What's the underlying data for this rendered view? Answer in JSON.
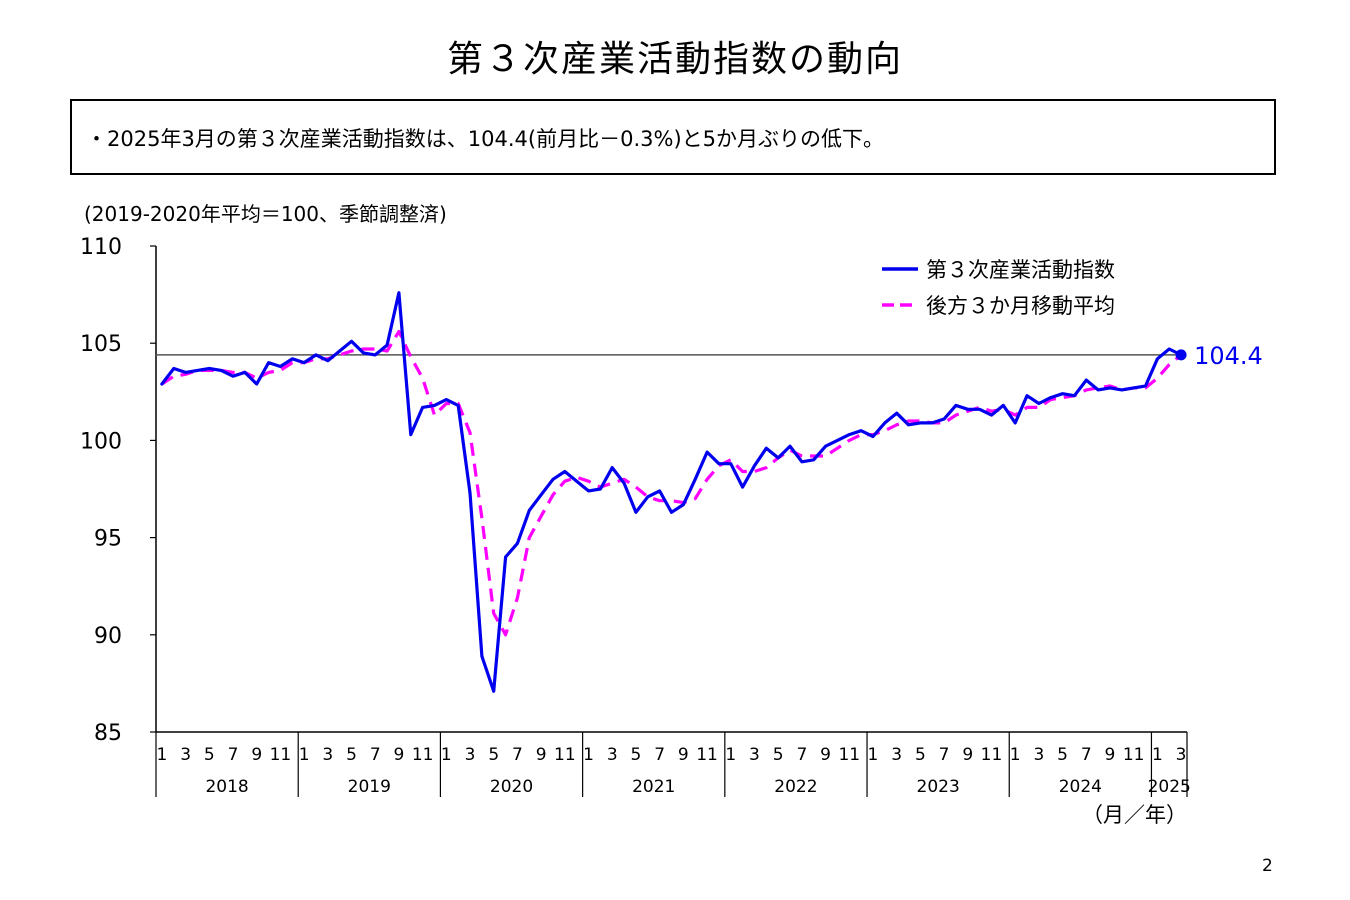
{
  "title": "第３次産業活動指数の動向",
  "summary": "・2025年3月の第３次産業活動指数は、104.4(前月比－0.3%)と5か月ぶりの低下。",
  "unit_note": "(2019-2020年平均＝100、季節調整済)",
  "page_number": "2",
  "chart_data": {
    "type": "line",
    "ylim": [
      85,
      110
    ],
    "yticks": [
      85,
      90,
      95,
      100,
      105,
      110
    ],
    "month_labels": [
      "1",
      "3",
      "5",
      "7",
      "9",
      "11"
    ],
    "years": [
      "2018",
      "2019",
      "2020",
      "2021",
      "2022",
      "2023",
      "2024",
      "2025"
    ],
    "last_year_month_labels": [
      "1",
      "3"
    ],
    "x_unit_label": "（月／年）",
    "reference_line": 104.4,
    "latest_value_label": "104.4",
    "x": [
      "2018-01",
      "2018-02",
      "2018-03",
      "2018-04",
      "2018-05",
      "2018-06",
      "2018-07",
      "2018-08",
      "2018-09",
      "2018-10",
      "2018-11",
      "2018-12",
      "2019-01",
      "2019-02",
      "2019-03",
      "2019-04",
      "2019-05",
      "2019-06",
      "2019-07",
      "2019-08",
      "2019-09",
      "2019-10",
      "2019-11",
      "2019-12",
      "2020-01",
      "2020-02",
      "2020-03",
      "2020-04",
      "2020-05",
      "2020-06",
      "2020-07",
      "2020-08",
      "2020-09",
      "2020-10",
      "2020-11",
      "2020-12",
      "2021-01",
      "2021-02",
      "2021-03",
      "2021-04",
      "2021-05",
      "2021-06",
      "2021-07",
      "2021-08",
      "2021-09",
      "2021-10",
      "2021-11",
      "2021-12",
      "2022-01",
      "2022-02",
      "2022-03",
      "2022-04",
      "2022-05",
      "2022-06",
      "2022-07",
      "2022-08",
      "2022-09",
      "2022-10",
      "2022-11",
      "2022-12",
      "2023-01",
      "2023-02",
      "2023-03",
      "2023-04",
      "2023-05",
      "2023-06",
      "2023-07",
      "2023-08",
      "2023-09",
      "2023-10",
      "2023-11",
      "2023-12",
      "2024-01",
      "2024-02",
      "2024-03",
      "2024-04",
      "2024-05",
      "2024-06",
      "2024-07",
      "2024-08",
      "2024-09",
      "2024-10",
      "2024-11",
      "2024-12",
      "2025-01",
      "2025-02",
      "2025-03"
    ],
    "series": [
      {
        "name": "第３次産業活動指数",
        "color": "#0000ee",
        "style": "solid",
        "values": [
          102.9,
          103.7,
          103.5,
          103.6,
          103.7,
          103.6,
          103.3,
          103.5,
          102.9,
          104.0,
          103.8,
          104.2,
          104.0,
          104.4,
          104.1,
          104.6,
          105.1,
          104.5,
          104.4,
          104.9,
          107.6,
          100.3,
          101.7,
          101.8,
          102.1,
          101.8,
          97.3,
          88.9,
          87.1,
          94.0,
          94.7,
          96.4,
          97.2,
          98.0,
          98.4,
          97.9,
          97.4,
          97.5,
          98.6,
          97.8,
          96.3,
          97.1,
          97.4,
          96.3,
          96.7,
          98.0,
          99.4,
          98.8,
          98.8,
          97.6,
          98.7,
          99.6,
          99.1,
          99.7,
          98.9,
          99.0,
          99.7,
          100.0,
          100.3,
          100.5,
          100.2,
          100.9,
          101.4,
          100.8,
          100.9,
          100.9,
          101.1,
          101.8,
          101.6,
          101.6,
          101.3,
          101.8,
          100.9,
          102.3,
          101.9,
          102.2,
          102.4,
          102.3,
          103.1,
          102.6,
          102.7,
          102.6,
          102.7,
          102.8,
          104.2,
          104.7,
          104.4
        ]
      },
      {
        "name": "後方３か月移動平均",
        "color": "#ff00ff",
        "style": "dashed",
        "values": [
          102.9,
          103.3,
          103.4,
          103.6,
          103.6,
          103.6,
          103.5,
          103.5,
          103.2,
          103.5,
          103.6,
          104.0,
          104.0,
          104.2,
          104.2,
          104.4,
          104.6,
          104.7,
          104.7,
          104.6,
          105.6,
          104.3,
          103.2,
          101.3,
          101.9,
          101.9,
          100.4,
          96.0,
          91.1,
          90.0,
          91.9,
          95.0,
          96.1,
          97.2,
          97.9,
          98.1,
          97.9,
          97.6,
          97.8,
          98.0,
          97.6,
          97.1,
          96.9,
          96.9,
          96.8,
          97.0,
          98.0,
          98.7,
          99.0,
          98.4,
          98.4,
          98.6,
          99.1,
          99.5,
          99.2,
          99.2,
          99.2,
          99.6,
          100.0,
          100.3,
          100.3,
          100.5,
          100.8,
          101.0,
          101.0,
          100.9,
          100.9,
          101.3,
          101.5,
          101.7,
          101.5,
          101.6,
          101.3,
          101.7,
          101.7,
          102.1,
          102.2,
          102.3,
          102.6,
          102.7,
          102.8,
          102.6,
          102.7,
          102.7,
          103.2,
          103.9,
          104.4
        ]
      }
    ]
  }
}
